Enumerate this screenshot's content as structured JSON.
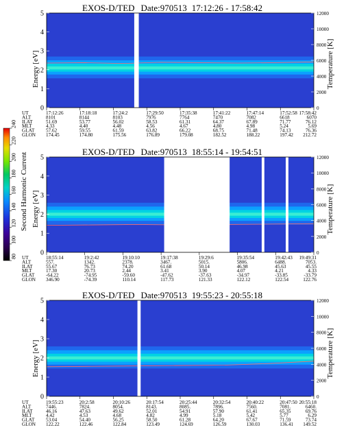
{
  "chart_data": [
    {
      "type": "heatmap",
      "title": "EXOS-D/TED",
      "date": "Date:970513",
      "time_range": "17:12:26 - 17:58:42",
      "ylabel": "Energy [eV]",
      "y2label": "Temperature [K]",
      "yticks": [
        "0",
        "1",
        "2",
        "3",
        "4",
        "5"
      ],
      "y2ticks": [
        "0",
        "2000",
        "4000",
        "6000",
        "8000",
        "10000",
        "12000"
      ],
      "ylim": [
        0,
        5
      ],
      "y2lim": [
        0,
        12000
      ],
      "band_center_ev": 2.1,
      "temperature_k": [
        5650,
        5700,
        5600,
        5750,
        5700,
        5650,
        5700,
        5800
      ],
      "gaps": [
        [
          0.328,
          0.345
        ]
      ],
      "orbit_table": {
        "labels": [
          "UT",
          "ALT",
          "ILAT",
          "MLT",
          "GLAT",
          "GLON"
        ],
        "columns": [
          [
            "17:12:26",
            "8101",
            "51.69",
            "4.33",
            "57.62",
            "174.45"
          ],
          [
            "17:18:18",
            "8144",
            "53.77",
            "4.40",
            "59.55",
            "174.80"
          ],
          [
            "17:24:2",
            "8103",
            "56.02",
            "4.48",
            "61.59",
            "175.56"
          ],
          [
            "17:29:50",
            "7976",
            "58.53",
            "4.56",
            "63.82",
            "176.89"
          ],
          [
            "17:35:38",
            "7764",
            "61.31",
            "4.67",
            "66.22",
            "179.08"
          ],
          [
            "17:41:22",
            "7470",
            "64.37",
            "4.80",
            "68.75",
            "182.52"
          ],
          [
            "17:47:14",
            "7082",
            "67.89",
            "4.98",
            "71.48",
            "188.22"
          ],
          [
            "17:52:58",
            "6618",
            "71.77",
            "5.24",
            "74.13",
            "197.42"
          ],
          [
            "17:58:42",
            "6070",
            "76.12",
            "5.69",
            "76.36",
            "212.72"
          ]
        ]
      }
    },
    {
      "type": "heatmap",
      "title": "EXOS-D/TED",
      "date": "Date:970513",
      "time_range": "18:55:14 - 19:54:51",
      "ylabel": "Energy [eV]",
      "y2label": "Temperature [K]",
      "yticks": [
        "0",
        "1",
        "2",
        "3",
        "4",
        "5"
      ],
      "y2ticks": [
        "0",
        "2000",
        "4000",
        "6000",
        "8000",
        "10000",
        "12000"
      ],
      "ylim": [
        0,
        5
      ],
      "y2lim": [
        0,
        12000
      ],
      "band_center_ev": 2.0,
      "temperature_k": [
        3400,
        3450,
        3500,
        3450,
        3500,
        3550,
        3600
      ],
      "gaps": [
        [
          0.44,
          0.685
        ],
        [
          0.805,
          0.815
        ],
        [
          0.895,
          0.905
        ]
      ],
      "orbit_table": {
        "labels": [
          "UT",
          "ALT",
          "ILAT",
          "MLT",
          "GLAT",
          "GLON"
        ],
        "columns": [
          [
            "18:55:14",
            "557.",
            "55.67",
            "17.30",
            "-64.22",
            "346.90"
          ],
          [
            "19:2:42",
            "1342.",
            "76.73",
            "20.73",
            "-74.95",
            "-74.39"
          ],
          [
            "19:10:10",
            "2378.",
            "74.20",
            "2.44",
            "-59.60",
            "110.14"
          ],
          [
            "19:17:38",
            "3467.",
            "61.68",
            "3.41",
            "-47.62",
            "117.73"
          ],
          [
            "19:29:6",
            "5015.",
            "50.14",
            "3.90",
            "-37.63",
            "121.33"
          ],
          [
            "19:35:54",
            "5806.",
            "46.98",
            "4.07",
            "-34.97",
            "122.12"
          ],
          [
            "19:42:43",
            "6488.",
            "45.63",
            "4.21",
            "-33.85",
            "122.54"
          ],
          [
            "19:49:31",
            "7053.",
            "45.55",
            "4.33",
            "-33.79",
            "122.76"
          ]
        ]
      }
    },
    {
      "type": "heatmap",
      "title": "EXOS-D/TED",
      "date": "Date:970513",
      "time_range": "19:55:23 - 20:55:18",
      "ylabel": "Energy [eV]",
      "y2label": "Temperature [K]",
      "yticks": [
        "0",
        "1",
        "2",
        "3",
        "4",
        "5"
      ],
      "y2ticks": [
        "0",
        "2000",
        "4000",
        "6000",
        "8000",
        "10000",
        "12000"
      ],
      "ylim": [
        0,
        5
      ],
      "y2lim": [
        0,
        12000
      ],
      "band_center_ev": 2.0,
      "temperature_k": [
        3700,
        3750,
        3800,
        3850,
        3900,
        4100,
        4400
      ],
      "gaps": [
        [
          0.34,
          0.352
        ]
      ],
      "orbit_table": {
        "labels": [
          "UT",
          "ALT",
          "ILAT",
          "MLT",
          "GLAT",
          "GLON"
        ],
        "columns": [
          [
            "19:55:23",
            "7446.",
            "46.16",
            "4.42",
            "53.04",
            "122.22"
          ],
          [
            "20:2:58",
            "7824.",
            "47.63",
            "4.53",
            "54.40",
            "122.46"
          ],
          [
            "20:10:26",
            "8054.",
            "49.62",
            "4.68",
            "56.25",
            "122.84"
          ],
          [
            "20:17:54",
            "8143.",
            "52.01",
            "4.82",
            "58.50",
            "123.49"
          ],
          [
            "20:25:44",
            "8085.",
            "54.91",
            "4.99",
            "61.28",
            "124.69"
          ],
          [
            "20:32:54",
            "7896.",
            "57.90",
            "5.18",
            "64.20",
            "126.59"
          ],
          [
            "20:40:22",
            "7560.",
            "61.41",
            "5.42",
            "67.67",
            "130.03"
          ],
          [
            "20:47:50",
            "7081.",
            "65.35",
            "5.77",
            "71.59",
            "136.41"
          ],
          [
            "20:55:18",
            "6460.",
            "69.76",
            "6.29",
            "73.74",
            "149.52"
          ]
        ]
      }
    }
  ],
  "colorbar": {
    "label": "Second Harmonic Current",
    "ticks": [
      "80",
      "100",
      "120",
      "140",
      "160",
      "180",
      "200",
      "220",
      "240"
    ],
    "colors": [
      "#000000",
      "#2a0050",
      "#3c0096",
      "#1e32dc",
      "#0a8cff",
      "#00d2c8",
      "#00c864",
      "#78e600",
      "#e6dc00",
      "#ff8c00",
      "#e60000"
    ]
  }
}
